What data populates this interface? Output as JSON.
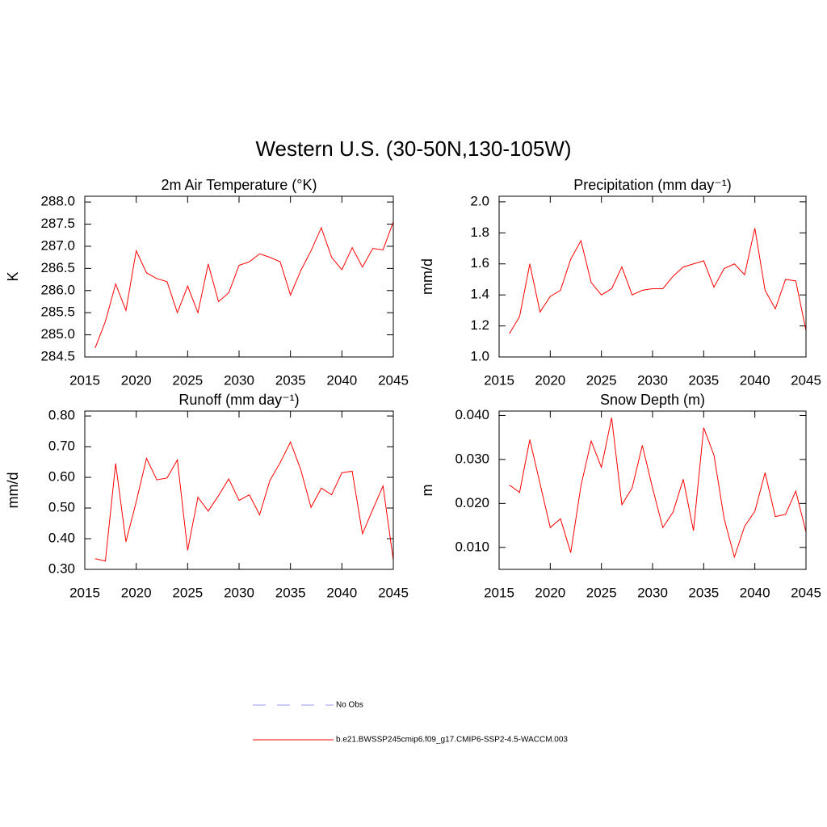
{
  "title": "Western U.S. (30-50N,130-105W)",
  "legend": [
    {
      "name": "No Obs",
      "color": "#9a9aee",
      "dashed": true
    },
    {
      "name": "b.e21.BWSSP245cmip6.f09_g17.CMIP6-SSP2-4.5-WACCM.003",
      "color": "#ff0000",
      "dashed": false
    }
  ],
  "chart_data": [
    {
      "type": "line",
      "title": "2m Air Temperature (°K)",
      "ylabel": "K",
      "color": "#ff0000",
      "x": [
        2016,
        2017,
        2018,
        2019,
        2020,
        2021,
        2022,
        2023,
        2024,
        2025,
        2026,
        2027,
        2028,
        2029,
        2030,
        2031,
        2032,
        2033,
        2034,
        2035,
        2036,
        2037,
        2038,
        2039,
        2040,
        2041,
        2042,
        2043,
        2044,
        2045
      ],
      "values": [
        284.7,
        285.3,
        286.15,
        285.55,
        286.9,
        286.4,
        286.27,
        286.2,
        285.5,
        286.1,
        285.5,
        286.6,
        285.75,
        285.95,
        286.57,
        286.65,
        286.83,
        286.75,
        286.65,
        285.9,
        286.45,
        286.9,
        287.42,
        286.75,
        286.47,
        286.97,
        286.53,
        286.95,
        286.92,
        287.55
      ],
      "xlim": [
        2015,
        2045
      ],
      "xticks": [
        2015,
        2020,
        2025,
        2030,
        2035,
        2040,
        2045
      ],
      "ylim": [
        284.5,
        288.13
      ],
      "yticks": [
        {
          "value": 284.5,
          "label": "284.5"
        },
        {
          "value": 285,
          "label": "285.0"
        },
        {
          "value": 285.5,
          "label": "285.5"
        },
        {
          "value": 286,
          "label": "286.0"
        },
        {
          "value": 286.5,
          "label": "286.5"
        },
        {
          "value": 287,
          "label": "287.0"
        },
        {
          "value": 287.5,
          "label": "287.5"
        },
        {
          "value": 288,
          "label": "288.0"
        }
      ]
    },
    {
      "type": "line",
      "title": "Precipitation (mm day⁻¹)",
      "ylabel": "mm/d",
      "color": "#ff0000",
      "x": [
        2016,
        2017,
        2018,
        2019,
        2020,
        2021,
        2022,
        2023,
        2024,
        2025,
        2026,
        2027,
        2028,
        2029,
        2030,
        2031,
        2032,
        2033,
        2034,
        2035,
        2036,
        2037,
        2038,
        2039,
        2040,
        2041,
        2042,
        2043,
        2044,
        2045
      ],
      "values": [
        1.15,
        1.26,
        1.6,
        1.29,
        1.39,
        1.43,
        1.63,
        1.75,
        1.48,
        1.4,
        1.44,
        1.58,
        1.4,
        1.43,
        1.44,
        1.44,
        1.52,
        1.58,
        1.6,
        1.62,
        1.45,
        1.57,
        1.6,
        1.53,
        1.83,
        1.43,
        1.31,
        1.5,
        1.49,
        1.17
      ],
      "xlim": [
        2015,
        2045
      ],
      "xticks": [
        2015,
        2020,
        2025,
        2030,
        2035,
        2040,
        2045
      ],
      "ylim": [
        1.0,
        2.036
      ],
      "yticks": [
        {
          "value": 1,
          "label": "1.0"
        },
        1.2,
        1.4,
        1.6,
        1.8,
        {
          "value": 2,
          "label": "2.0"
        }
      ]
    },
    {
      "type": "line",
      "title": "Runoff (mm day⁻¹)",
      "ylabel": "mm/d",
      "color": "#ff0000",
      "x": [
        2016,
        2017,
        2018,
        2019,
        2020,
        2021,
        2022,
        2023,
        2024,
        2025,
        2026,
        2027,
        2028,
        2029,
        2030,
        2031,
        2032,
        2033,
        2034,
        2035,
        2036,
        2037,
        2038,
        2039,
        2040,
        2041,
        2042,
        2043,
        2044,
        2045
      ],
      "values": [
        0.335,
        0.327,
        0.645,
        0.39,
        0.52,
        0.662,
        0.592,
        0.598,
        0.657,
        0.362,
        0.535,
        0.49,
        0.54,
        0.595,
        0.525,
        0.543,
        0.478,
        0.59,
        0.648,
        0.715,
        0.625,
        0.502,
        0.565,
        0.543,
        0.615,
        0.62,
        0.416,
        0.495,
        0.572,
        0.33
      ],
      "xlim": [
        2015,
        2045
      ],
      "xticks": [
        2015,
        2020,
        2025,
        2030,
        2035,
        2040,
        2045
      ],
      "ylim": [
        0.3,
        0.816
      ],
      "yticks": [
        {
          "value": 0.3,
          "label": "0.30"
        },
        {
          "value": 0.4,
          "label": "0.40"
        },
        {
          "value": 0.5,
          "label": "0.50"
        },
        {
          "value": 0.6,
          "label": "0.60"
        },
        {
          "value": 0.7,
          "label": "0.70"
        },
        {
          "value": 0.8,
          "label": "0.80"
        }
      ]
    },
    {
      "type": "line",
      "title": "Snow Depth (m)",
      "ylabel": "m",
      "color": "#ff0000",
      "x": [
        2016,
        2017,
        2018,
        2019,
        2020,
        2021,
        2022,
        2023,
        2024,
        2025,
        2026,
        2027,
        2028,
        2029,
        2030,
        2031,
        2032,
        2033,
        2034,
        2035,
        2036,
        2037,
        2038,
        2039,
        2040,
        2041,
        2042,
        2043,
        2044,
        2045
      ],
      "values": [
        0.0242,
        0.0225,
        0.0345,
        0.0245,
        0.0145,
        0.0165,
        0.0088,
        0.024,
        0.0342,
        0.0282,
        0.0395,
        0.0197,
        0.0235,
        0.0332,
        0.0235,
        0.0145,
        0.018,
        0.0255,
        0.0138,
        0.0372,
        0.031,
        0.0165,
        0.0078,
        0.0148,
        0.0182,
        0.027,
        0.017,
        0.0175,
        0.0228,
        0.0135
      ],
      "xlim": [
        2015,
        2045
      ],
      "xticks": [
        2015,
        2020,
        2025,
        2030,
        2035,
        2040,
        2045
      ],
      "ylim": [
        0.005,
        0.041
      ],
      "yticks": [
        {
          "value": 0.01,
          "label": "0.010"
        },
        {
          "value": 0.02,
          "label": "0.020"
        },
        {
          "value": 0.03,
          "label": "0.030"
        },
        {
          "value": 0.04,
          "label": "0.040"
        }
      ]
    }
  ]
}
